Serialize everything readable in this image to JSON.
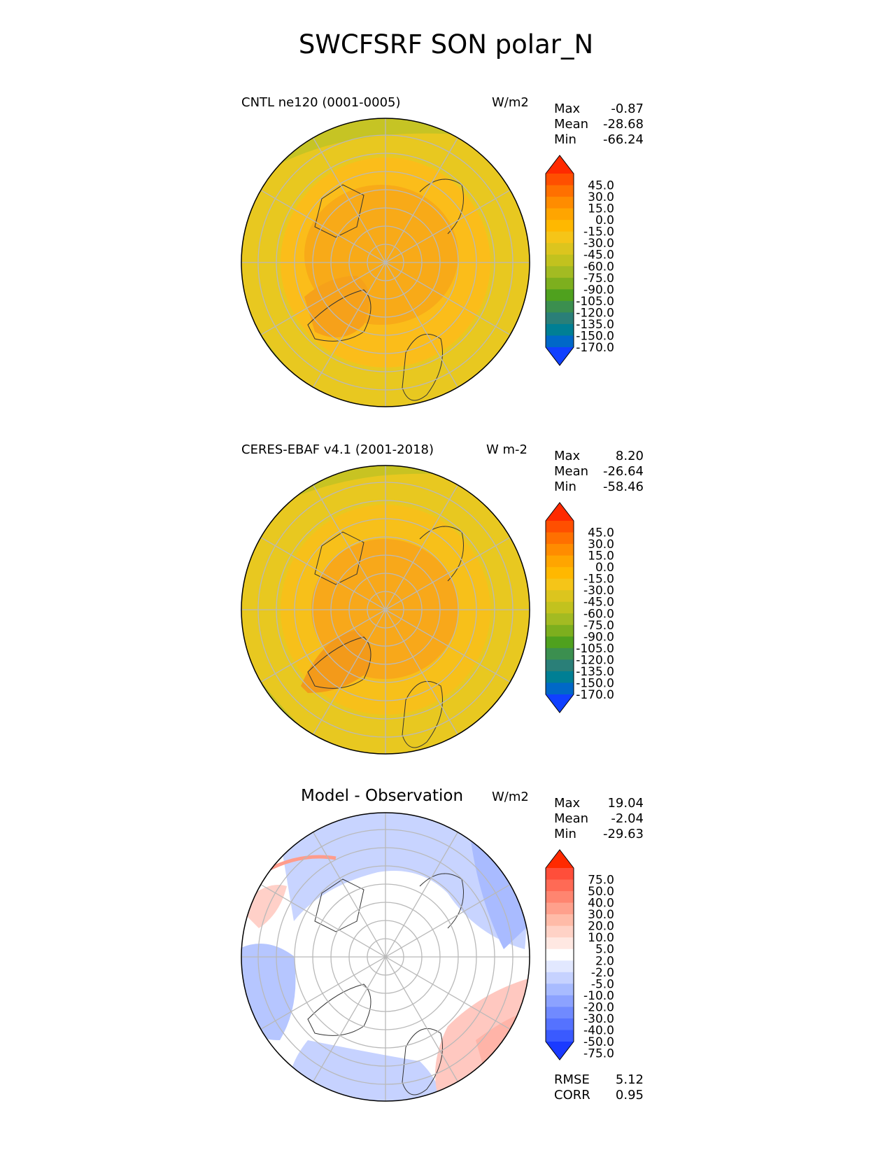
{
  "title": "SWCFSRF SON polar_N",
  "panels": [
    {
      "id": "model",
      "title": "CNTL ne120 (0001-0005)",
      "units": "W/m2",
      "stats": [
        {
          "label": "Max",
          "value": "-0.87"
        },
        {
          "label": "Mean",
          "value": "-28.68"
        },
        {
          "label": "Min",
          "value": "-66.24"
        }
      ],
      "colorbar": {
        "levels": [
          "45.0",
          "30.0",
          "15.0",
          "0.0",
          "-15.0",
          "-30.0",
          "-45.0",
          "-60.0",
          "-75.0",
          "-90.0",
          "-105.0",
          "-120.0",
          "-135.0",
          "-150.0",
          "-170.0"
        ],
        "colors": [
          "#ff2a00",
          "#ff4f00",
          "#ff7000",
          "#ff8c00",
          "#ffa500",
          "#ffb800",
          "#f5c518",
          "#dcc51e",
          "#c2c21e",
          "#a3bb22",
          "#7daf1e",
          "#4fa11e",
          "#3b8f4f",
          "#2a7f78",
          "#007f94",
          "#0068c8",
          "#1040ff"
        ]
      }
    },
    {
      "id": "obs",
      "title": "CERES-EBAF v4.1 (2001-2018)",
      "units": "W m-2",
      "stats": [
        {
          "label": "Max",
          "value": "8.20"
        },
        {
          "label": "Mean",
          "value": "-26.64"
        },
        {
          "label": "Min",
          "value": "-58.46"
        }
      ],
      "colorbar": {
        "levels": [
          "45.0",
          "30.0",
          "15.0",
          "0.0",
          "-15.0",
          "-30.0",
          "-45.0",
          "-60.0",
          "-75.0",
          "-90.0",
          "-105.0",
          "-120.0",
          "-135.0",
          "-150.0",
          "-170.0"
        ],
        "colors": [
          "#ff2a00",
          "#ff4f00",
          "#ff7000",
          "#ff8c00",
          "#ffa500",
          "#ffb800",
          "#f5c518",
          "#dcc51e",
          "#c2c21e",
          "#a3bb22",
          "#7daf1e",
          "#4fa11e",
          "#3b8f4f",
          "#2a7f78",
          "#007f94",
          "#0068c8",
          "#1040ff"
        ]
      }
    },
    {
      "id": "diff",
      "title": "Model - Observation",
      "units": "W/m2",
      "stats": [
        {
          "label": "Max",
          "value": "19.04"
        },
        {
          "label": "Mean",
          "value": "-2.04"
        },
        {
          "label": "Min",
          "value": "-29.63"
        }
      ],
      "extra": [
        {
          "label": "RMSE",
          "value": "5.12"
        },
        {
          "label": "CORR",
          "value": "0.95"
        }
      ],
      "colorbar": {
        "levels": [
          "75.0",
          "50.0",
          "40.0",
          "30.0",
          "20.0",
          "10.0",
          "5.0",
          "2.0",
          "-2.0",
          "-5.0",
          "-10.0",
          "-20.0",
          "-30.0",
          "-40.0",
          "-50.0",
          "-75.0"
        ],
        "colors": [
          "#ff2a00",
          "#ff4e3a",
          "#ff6a55",
          "#ff8570",
          "#ffa08c",
          "#ffbba8",
          "#ffd2c6",
          "#ffe8e2",
          "#ffffff",
          "#e2e8ff",
          "#c6d2ff",
          "#a8bbff",
          "#8ca2ff",
          "#708aff",
          "#5572ff",
          "#3a5aff",
          "#1a3aff"
        ]
      }
    }
  ],
  "chart_data": [
    {
      "type": "heatmap",
      "projection": "north polar stereographic",
      "title": "CNTL ne120 (0001-0005)",
      "units": "W/m2",
      "stats": {
        "max": -0.87,
        "mean": -28.68,
        "min": -66.24
      },
      "contour_levels": [
        -170,
        -150,
        -135,
        -120,
        -105,
        -90,
        -75,
        -60,
        -45,
        -30,
        -15,
        0,
        15,
        30,
        45
      ]
    },
    {
      "type": "heatmap",
      "projection": "north polar stereographic",
      "title": "CERES-EBAF v4.1 (2001-2018)",
      "units": "W m-2",
      "stats": {
        "max": 8.2,
        "mean": -26.64,
        "min": -58.46
      },
      "contour_levels": [
        -170,
        -150,
        -135,
        -120,
        -105,
        -90,
        -75,
        -60,
        -45,
        -30,
        -15,
        0,
        15,
        30,
        45
      ]
    },
    {
      "type": "heatmap",
      "projection": "north polar stereographic",
      "title": "Model - Observation",
      "units": "W/m2",
      "stats": {
        "max": 19.04,
        "mean": -2.04,
        "min": -29.63,
        "rmse": 5.12,
        "corr": 0.95
      },
      "contour_levels": [
        -75,
        -50,
        -40,
        -30,
        -20,
        -10,
        -5,
        -2,
        2,
        5,
        10,
        20,
        30,
        40,
        50,
        75
      ]
    }
  ]
}
